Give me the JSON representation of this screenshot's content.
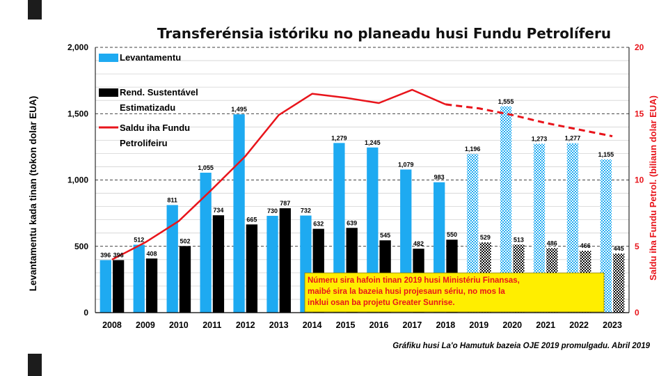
{
  "chart_data": {
    "type": "bar",
    "title": "Transferénsia istóriku no planeadu husi Fundu Petrolíferu",
    "ylabel": "Levantamentu kada tinan (tokon dolar EUA)",
    "y2label": "Saldu iha Fundu Petrol. (biliaun dolar EUA)",
    "ylim": [
      0,
      2000
    ],
    "y2lim": [
      0,
      20
    ],
    "yticks": [
      "0",
      "500",
      "1,000",
      "1,500",
      "2,000"
    ],
    "y2ticks": [
      "0",
      "5",
      "10",
      "15",
      "20"
    ],
    "categories": [
      "2008",
      "2009",
      "2010",
      "2011",
      "2012",
      "2013",
      "2014",
      "2015",
      "2016",
      "2017",
      "2018",
      "2019",
      "2020",
      "2021",
      "2022",
      "2023"
    ],
    "first_projected_index": 11,
    "series": [
      {
        "name": "Levantamentu",
        "color": "#1eaaf1",
        "values": [
          396,
          512,
          811,
          1055,
          1495,
          730,
          732,
          1279,
          1245,
          1079,
          983,
          1196,
          1555,
          1273,
          1277,
          1155
        ],
        "labels": [
          "396",
          "512",
          "811",
          "1,055",
          "1,495",
          "730",
          "732",
          "1,279",
          "1,245",
          "1,079",
          "983",
          "1,196",
          "1,555",
          "1,273",
          "1,277",
          "1,155"
        ]
      },
      {
        "name": "Rend. Sustentável Estimatizadu",
        "color": "#000000",
        "values": [
          396,
          408,
          502,
          734,
          665,
          787,
          632,
          639,
          545,
          482,
          550,
          529,
          513,
          486,
          466,
          445
        ],
        "labels": [
          "396",
          "408",
          "502",
          "734",
          "665",
          "787",
          "632",
          "639",
          "545",
          "482",
          "550",
          "529",
          "513",
          "486",
          "466",
          "445"
        ]
      },
      {
        "name": "Saldu iha Fundu Petrolíferu",
        "color": "#e8141b",
        "axis": "right",
        "values": [
          4.0,
          5.3,
          6.9,
          9.3,
          11.8,
          14.9,
          16.5,
          16.2,
          15.8,
          16.8,
          15.7,
          15.4,
          14.9,
          14.3,
          13.8,
          13.3
        ]
      }
    ],
    "legend": [
      {
        "label": "Levantamentu"
      },
      {
        "label": "Rend. Sustentável",
        "label2": "Estimatizadu"
      },
      {
        "label": "Saldu iha Fundu",
        "label2": "Petrolifeiru"
      }
    ],
    "annotation": [
      "Númeru sira hafoin tinan 2019 husi Ministériu Finansas,",
      "maibé sira la bazeia husi projesaun sériu, no mos la",
      "inklui osan ba projetu Greater Sunrise."
    ],
    "source": "Gráfiku husi La'o Hamutuk bazeia OJE 2019 promulgadu.  Abril 2019"
  }
}
